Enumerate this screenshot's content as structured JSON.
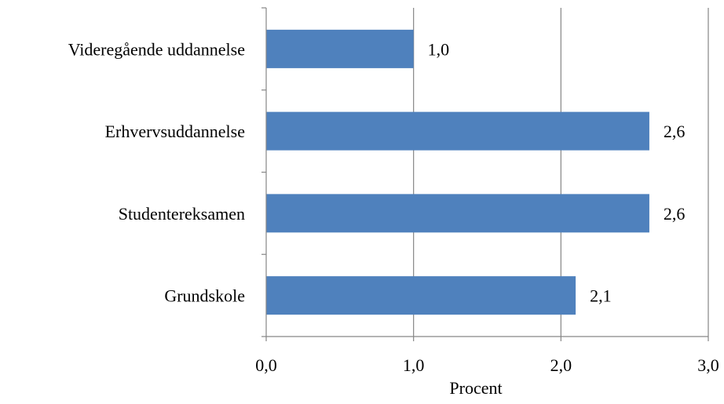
{
  "chart_data": {
    "type": "bar",
    "orientation": "horizontal",
    "categories": [
      "Videregående uddannelse",
      "Erhvervsuddannelse",
      "Studentereksamen",
      "Grundskole"
    ],
    "values": [
      1.0,
      2.6,
      2.6,
      2.1
    ],
    "value_labels": [
      "1,0",
      "2,6",
      "2,6",
      "2,1"
    ],
    "xlabel": "Procent",
    "xlim": [
      0,
      3
    ],
    "xticks": [
      0,
      1,
      2,
      3
    ],
    "xtick_labels": [
      "0,0",
      "1,0",
      "2,0",
      "3,0"
    ],
    "grid": true,
    "legend": "none",
    "bar_color": "#4f81bd",
    "gridline_color": "#868686"
  }
}
